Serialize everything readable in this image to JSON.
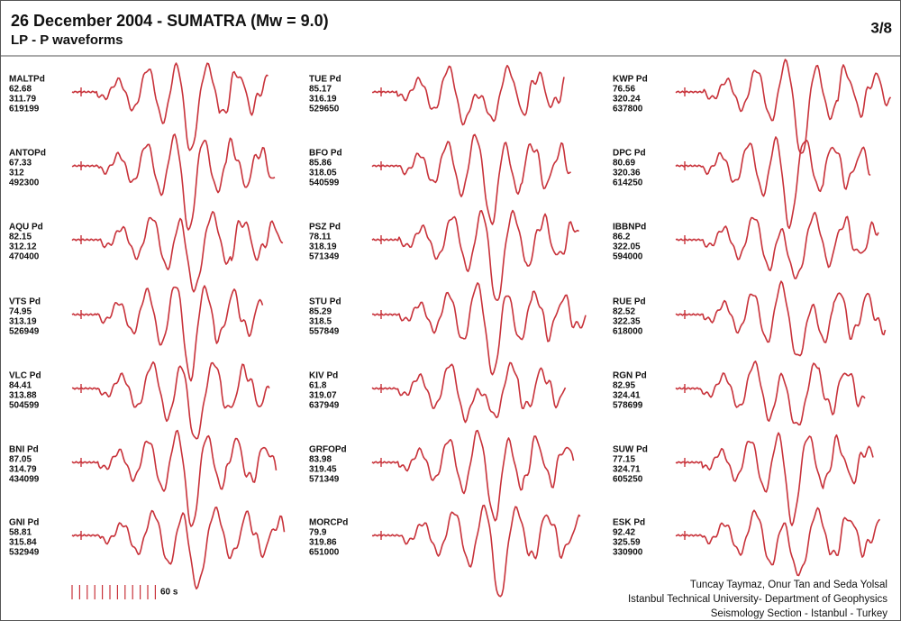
{
  "header": {
    "title": "26 December 2004 - SUMATRA (Mw = 9.0)",
    "subtitle": "LP - P waveforms",
    "page": "3/8"
  },
  "stations": [
    {
      "name": "MALTPd",
      "values": [
        "62.68",
        "311.79",
        "619199"
      ]
    },
    {
      "name": "ANTOPd",
      "values": [
        "67.33",
        "312",
        "492300"
      ]
    },
    {
      "name": "AQU Pd",
      "values": [
        "82.15",
        "312.12",
        "470400"
      ]
    },
    {
      "name": "VTS Pd",
      "values": [
        "74.95",
        "313.19",
        "526949"
      ]
    },
    {
      "name": "VLC Pd",
      "values": [
        "84.41",
        "313.88",
        "504599"
      ]
    },
    {
      "name": "BNI Pd",
      "values": [
        "87.05",
        "314.79",
        "434099"
      ]
    },
    {
      "name": "GNI Pd",
      "values": [
        "58.81",
        "315.84",
        "532949"
      ]
    },
    {
      "name": "TUE Pd",
      "values": [
        "85.17",
        "316.19",
        "529650"
      ]
    },
    {
      "name": "BFO Pd",
      "values": [
        "85.86",
        "318.05",
        "540599"
      ]
    },
    {
      "name": "PSZ Pd",
      "values": [
        "78.11",
        "318.19",
        "571349"
      ]
    },
    {
      "name": "STU Pd",
      "values": [
        "85.29",
        "318.5",
        "557849"
      ]
    },
    {
      "name": "KIV Pd",
      "values": [
        "61.8",
        "319.07",
        "637949"
      ]
    },
    {
      "name": "GRFOPd",
      "values": [
        "83.98",
        "319.45",
        "571349"
      ]
    },
    {
      "name": "MORCPd",
      "values": [
        "79.9",
        "319.86",
        "651000"
      ]
    },
    {
      "name": "KWP Pd",
      "values": [
        "76.56",
        "320.24",
        "637800"
      ]
    },
    {
      "name": "DPC Pd",
      "values": [
        "80.69",
        "320.36",
        "614250"
      ]
    },
    {
      "name": "IBBNPd",
      "values": [
        "86.2",
        "322.05",
        "594000"
      ]
    },
    {
      "name": "RUE Pd",
      "values": [
        "82.52",
        "322.35",
        "618000"
      ]
    },
    {
      "name": "RGN Pd",
      "values": [
        "82.95",
        "324.41",
        "578699"
      ]
    },
    {
      "name": "SUW Pd",
      "values": [
        "77.15",
        "324.71",
        "605250"
      ]
    },
    {
      "name": "ESK Pd",
      "values": [
        "92.42",
        "325.59",
        "330900"
      ]
    }
  ],
  "scale": "60 s",
  "footer": [
    "Tuncay Taymaz, Onur Tan and Seda Yolsal",
    "Istanbul Technical University- Department of Geophysics",
    "Seismology Section - Istanbul - Turkey"
  ]
}
